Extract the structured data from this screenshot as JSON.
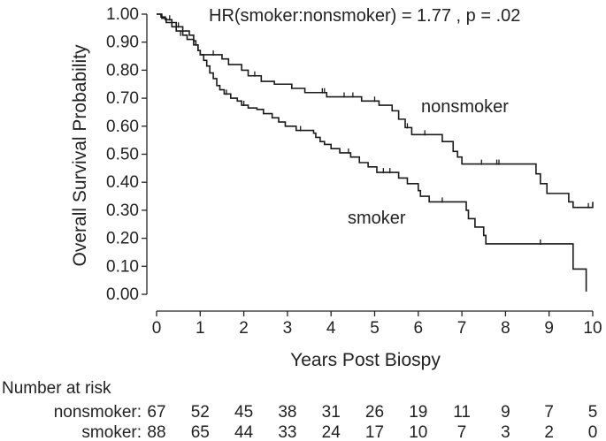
{
  "chart_data": {
    "type": "line",
    "subtype": "kaplan-meier",
    "title": "",
    "annotation": "HR(smoker:nonsmoker) = 1.77 , p = .02",
    "xlabel": "Years Post Biospy",
    "ylabel": "Overall Survival Probability",
    "xlim": [
      0,
      10
    ],
    "ylim": [
      0,
      1
    ],
    "xticks": [
      "0",
      "1",
      "2",
      "3",
      "4",
      "5",
      "6",
      "7",
      "8",
      "9",
      "10"
    ],
    "yticks": [
      "0.00",
      "0.10",
      "0.20",
      "0.30",
      "0.40",
      "0.50",
      "0.60",
      "0.70",
      "0.80",
      "0.90",
      "1.00"
    ],
    "series": [
      {
        "name": "nonsmoker",
        "label": "nonsmoker",
        "steps": [
          [
            0,
            1.0
          ],
          [
            0.12,
            0.985
          ],
          [
            0.22,
            0.97
          ],
          [
            0.35,
            0.955
          ],
          [
            0.45,
            0.94
          ],
          [
            0.6,
            0.925
          ],
          [
            0.7,
            0.91
          ],
          [
            0.85,
            0.89
          ],
          [
            0.95,
            0.87
          ],
          [
            1.0,
            0.855
          ],
          [
            1.5,
            0.84
          ],
          [
            1.65,
            0.82
          ],
          [
            1.95,
            0.8
          ],
          [
            2.1,
            0.78
          ],
          [
            2.4,
            0.76
          ],
          [
            2.7,
            0.75
          ],
          [
            3.1,
            0.735
          ],
          [
            3.4,
            0.72
          ],
          [
            3.9,
            0.705
          ],
          [
            4.7,
            0.69
          ],
          [
            5.1,
            0.675
          ],
          [
            5.4,
            0.655
          ],
          [
            5.55,
            0.625
          ],
          [
            5.7,
            0.595
          ],
          [
            5.85,
            0.57
          ],
          [
            6.55,
            0.545
          ],
          [
            6.8,
            0.51
          ],
          [
            6.9,
            0.49
          ],
          [
            7.0,
            0.465
          ],
          [
            8.7,
            0.43
          ],
          [
            8.8,
            0.395
          ],
          [
            8.95,
            0.36
          ],
          [
            9.45,
            0.33
          ],
          [
            9.55,
            0.31
          ],
          [
            10.0,
            0.33
          ]
        ],
        "end": 10.0,
        "censored": [
          [
            0.55,
            0.925
          ],
          [
            1.3,
            0.855
          ],
          [
            2.25,
            0.78
          ],
          [
            3.8,
            0.72
          ],
          [
            3.85,
            0.72
          ],
          [
            4.3,
            0.705
          ],
          [
            4.5,
            0.705
          ],
          [
            5.0,
            0.69
          ],
          [
            5.75,
            0.595
          ],
          [
            6.15,
            0.57
          ],
          [
            7.45,
            0.465
          ],
          [
            7.8,
            0.465
          ],
          [
            7.85,
            0.465
          ],
          [
            9.9,
            0.31
          ]
        ]
      },
      {
        "name": "smoker",
        "label": "smoker",
        "steps": [
          [
            0,
            1.0
          ],
          [
            0.1,
            0.99
          ],
          [
            0.2,
            0.98
          ],
          [
            0.35,
            0.97
          ],
          [
            0.45,
            0.955
          ],
          [
            0.6,
            0.94
          ],
          [
            0.75,
            0.925
          ],
          [
            0.85,
            0.905
          ],
          [
            0.9,
            0.89
          ],
          [
            0.95,
            0.87
          ],
          [
            1.0,
            0.855
          ],
          [
            1.08,
            0.835
          ],
          [
            1.15,
            0.815
          ],
          [
            1.22,
            0.79
          ],
          [
            1.3,
            0.77
          ],
          [
            1.38,
            0.745
          ],
          [
            1.45,
            0.73
          ],
          [
            1.55,
            0.715
          ],
          [
            1.7,
            0.7
          ],
          [
            1.85,
            0.69
          ],
          [
            1.95,
            0.675
          ],
          [
            2.1,
            0.665
          ],
          [
            2.3,
            0.66
          ],
          [
            2.45,
            0.645
          ],
          [
            2.65,
            0.63
          ],
          [
            2.8,
            0.615
          ],
          [
            2.95,
            0.6
          ],
          [
            3.2,
            0.585
          ],
          [
            3.6,
            0.575
          ],
          [
            3.65,
            0.56
          ],
          [
            3.75,
            0.545
          ],
          [
            3.85,
            0.535
          ],
          [
            4.0,
            0.52
          ],
          [
            4.2,
            0.505
          ],
          [
            4.45,
            0.49
          ],
          [
            4.65,
            0.47
          ],
          [
            4.85,
            0.455
          ],
          [
            5.05,
            0.435
          ],
          [
            5.55,
            0.415
          ],
          [
            5.75,
            0.395
          ],
          [
            6.0,
            0.37
          ],
          [
            6.05,
            0.35
          ],
          [
            6.25,
            0.33
          ],
          [
            7.1,
            0.3
          ],
          [
            7.15,
            0.27
          ],
          [
            7.3,
            0.24
          ],
          [
            7.5,
            0.21
          ],
          [
            7.55,
            0.18
          ],
          [
            9.55,
            0.09
          ],
          [
            9.85,
            0.01
          ]
        ],
        "end": 9.85,
        "censored": [
          [
            0.3,
            0.98
          ],
          [
            0.5,
            0.955
          ],
          [
            1.6,
            0.715
          ],
          [
            2.0,
            0.675
          ],
          [
            3.3,
            0.585
          ],
          [
            4.4,
            0.505
          ],
          [
            5.2,
            0.435
          ],
          [
            5.35,
            0.435
          ],
          [
            6.55,
            0.33
          ],
          [
            8.8,
            0.18
          ]
        ]
      }
    ],
    "number_at_risk": {
      "header": "Number at risk",
      "rows": [
        {
          "label": "nonsmoker:",
          "values": [
            "67",
            "52",
            "45",
            "38",
            "31",
            "26",
            "19",
            "11",
            "9",
            "7",
            "5"
          ]
        },
        {
          "label": "smoker:",
          "values": [
            "88",
            "65",
            "44",
            "33",
            "24",
            "17",
            "10",
            "7",
            "3",
            "2",
            "0"
          ]
        }
      ]
    }
  }
}
